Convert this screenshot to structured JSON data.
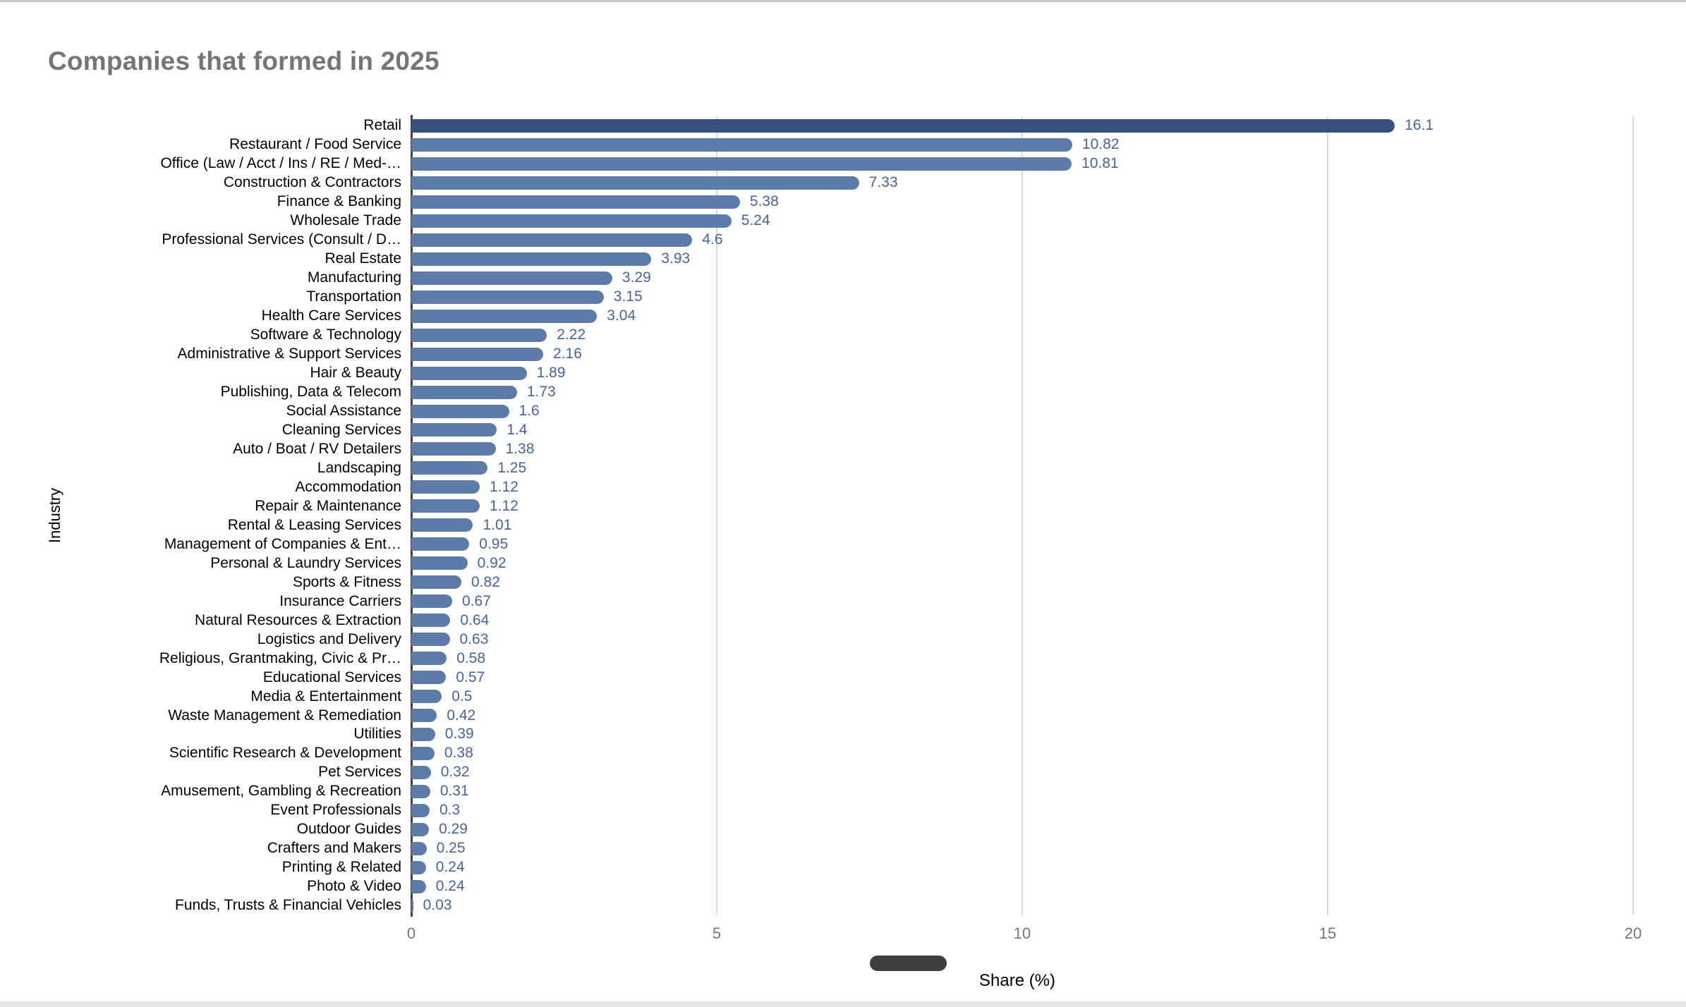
{
  "title": "Companies that formed in 2025",
  "chart_data": {
    "type": "bar",
    "orientation": "horizontal",
    "title": "Companies that formed in 2025",
    "xlabel": "Share (%)",
    "ylabel": "Industry",
    "xlim": [
      0,
      20
    ],
    "xticks": [
      0,
      5,
      10,
      15,
      20
    ],
    "grid": "vertical-gridlines-on",
    "legend_position": "bottom",
    "categories": [
      "Retail",
      "Restaurant / Food Service",
      "Office (Law / Acct / Ins / RE / Med-…",
      "Construction & Contractors",
      "Finance & Banking",
      "Wholesale Trade",
      "Professional Services (Consult / D…",
      "Real Estate",
      "Manufacturing",
      "Transportation",
      "Health Care Services",
      "Software & Technology",
      "Administrative & Support Services",
      "Hair & Beauty",
      "Publishing, Data & Telecom",
      "Social Assistance",
      "Cleaning Services",
      "Auto / Boat / RV Detailers",
      "Landscaping",
      "Accommodation",
      "Repair & Maintenance",
      "Rental & Leasing Services",
      "Management of Companies & Ent…",
      "Personal & Laundry Services",
      "Sports & Fitness",
      "Insurance Carriers",
      "Natural Resources & Extraction",
      "Logistics and Delivery",
      "Religious, Grantmaking, Civic & Pr…",
      "Educational Services",
      "Media & Entertainment",
      "Waste Management & Remediation",
      "Utilities",
      "Scientific Research & Development",
      "Pet Services",
      "Amusement, Gambling & Recreation",
      "Event Professionals",
      "Outdoor Guides",
      "Crafters and Makers",
      "Printing & Related",
      "Photo & Video",
      "Funds, Trusts & Financial Vehicles"
    ],
    "values": [
      16.1,
      10.82,
      10.81,
      7.33,
      5.38,
      5.24,
      4.6,
      3.93,
      3.29,
      3.15,
      3.04,
      2.22,
      2.16,
      1.89,
      1.73,
      1.6,
      1.4,
      1.38,
      1.25,
      1.12,
      1.12,
      1.01,
      0.95,
      0.92,
      0.82,
      0.67,
      0.64,
      0.63,
      0.58,
      0.57,
      0.5,
      0.42,
      0.39,
      0.38,
      0.32,
      0.31,
      0.3,
      0.29,
      0.25,
      0.24,
      0.24,
      0.03
    ],
    "colors": {
      "bar_default": "#5B7CA9",
      "bar_first": "#36517E",
      "value_label": "#44649B",
      "gridline": "#DADADA",
      "axis_line": "#424242",
      "tick_label": "#757575",
      "title": "#757575",
      "legend_swatch": "#3F3F3F"
    }
  }
}
